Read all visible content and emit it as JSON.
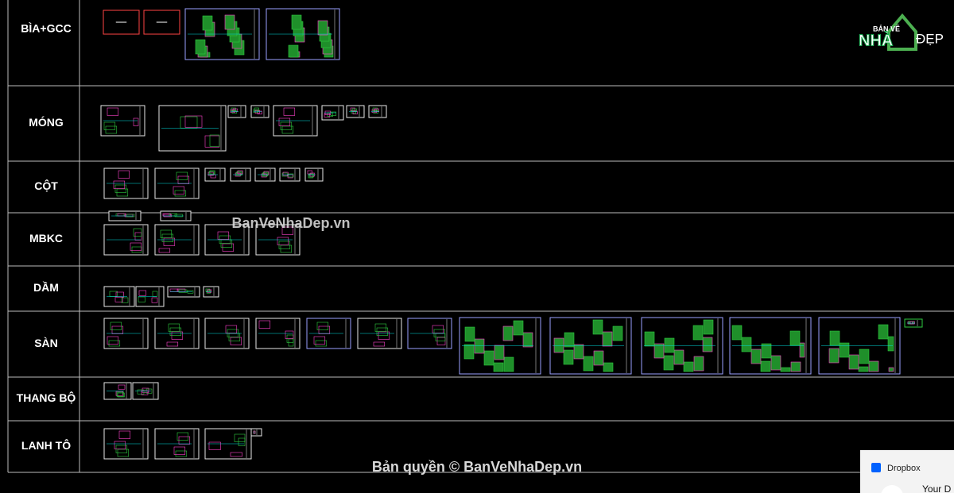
{
  "rows": [
    {
      "label": "BÌA+GCC"
    },
    {
      "label": "MÓNG"
    },
    {
      "label": "CỘT"
    },
    {
      "label": "MBKC"
    },
    {
      "label": "DẦM"
    },
    {
      "label": "SÀN"
    },
    {
      "label": "THANG BỘ"
    },
    {
      "label": "LANH TÔ"
    }
  ],
  "watermark": "BanVeNhaDep.vn",
  "copyright": "Bản quyền © BanVeNhaDep.vn",
  "logo": {
    "top": "BẢN VẼ",
    "main": "NHÀ",
    "side": "ĐẸP"
  },
  "notification": {
    "app": "Dropbox",
    "text": "Your D"
  }
}
